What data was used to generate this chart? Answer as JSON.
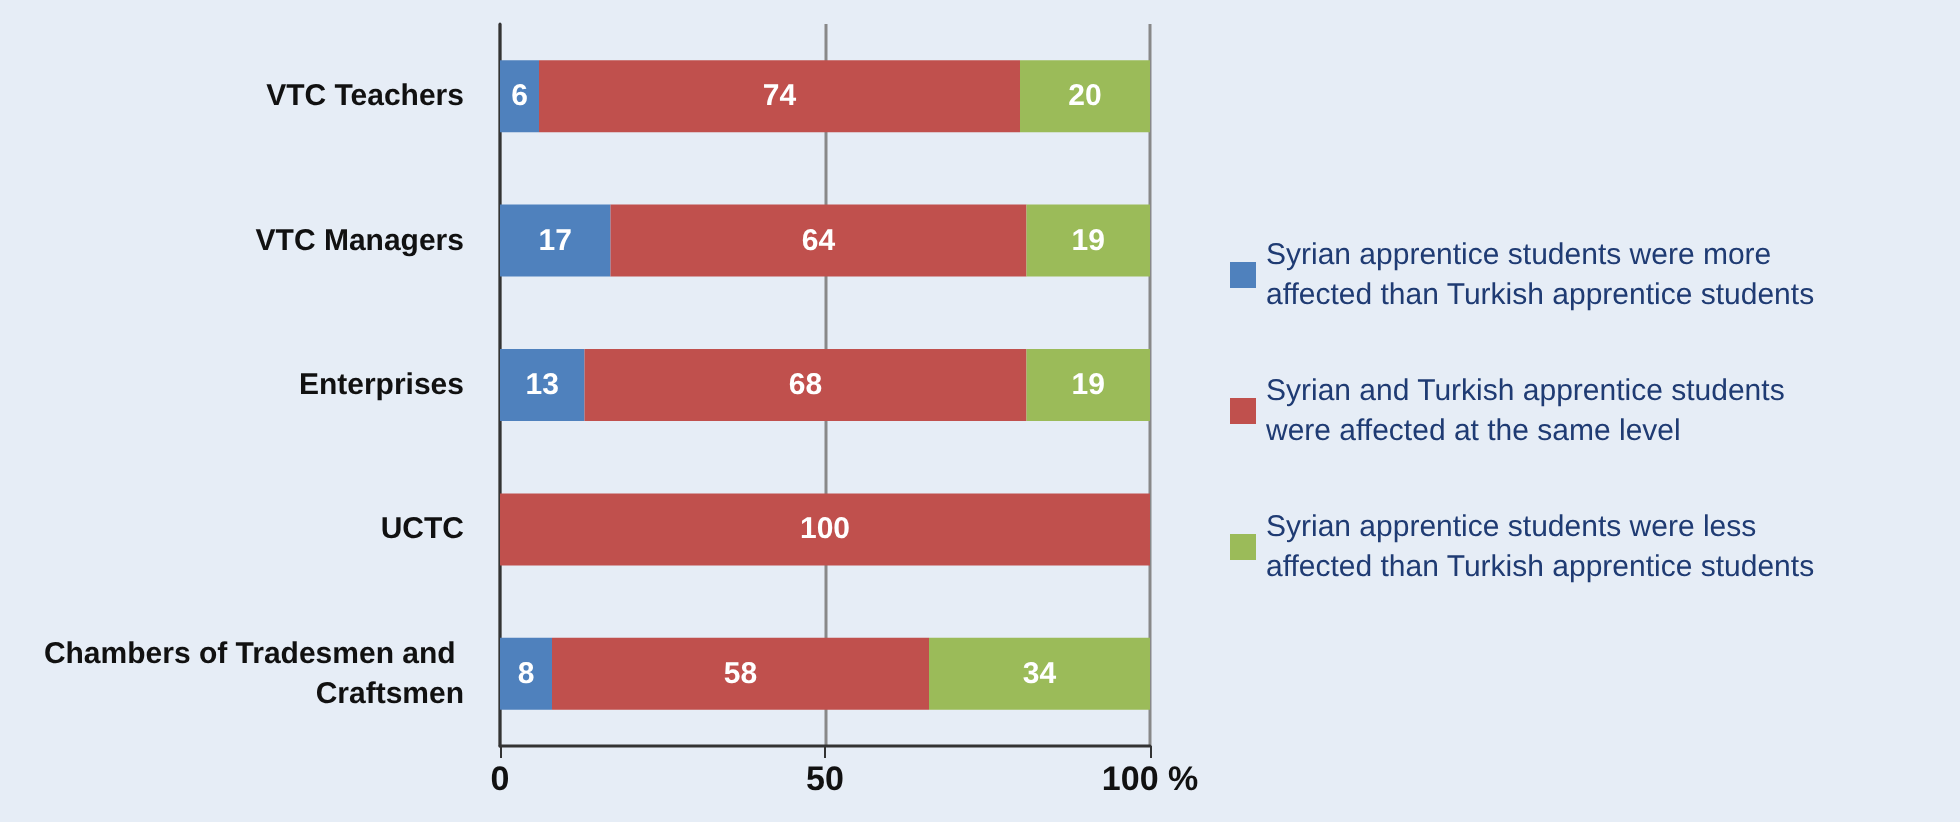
{
  "chart_data": {
    "type": "bar",
    "orientation": "horizontal",
    "stacked": true,
    "data_labels": true,
    "grid": "x",
    "legend": "right",
    "categories": [
      "VTC Teachers",
      "VTC Managers",
      "Enterprises",
      "UCTC",
      "Chambers of Tradesmen and Craftsmen"
    ],
    "xlim": [
      0,
      100
    ],
    "xticks": [
      0,
      50,
      {
        "value": 100,
        "label": "100 %"
      }
    ],
    "series": [
      {
        "name": "Syrian apprentice students were more affected than Turkish apprentice students",
        "color": "#4f81bd",
        "values": [
          6,
          17,
          13,
          null,
          8
        ]
      },
      {
        "name": "Syrian and Turkish apprentice students were affected at the same level",
        "color": "#c0504d",
        "values": [
          74,
          64,
          68,
          100,
          58
        ]
      },
      {
        "name": "Syrian apprentice students were less affected than Turkish apprentice students",
        "color": "#9bbb59",
        "values": [
          20,
          19,
          19,
          null,
          34
        ]
      }
    ]
  }
}
